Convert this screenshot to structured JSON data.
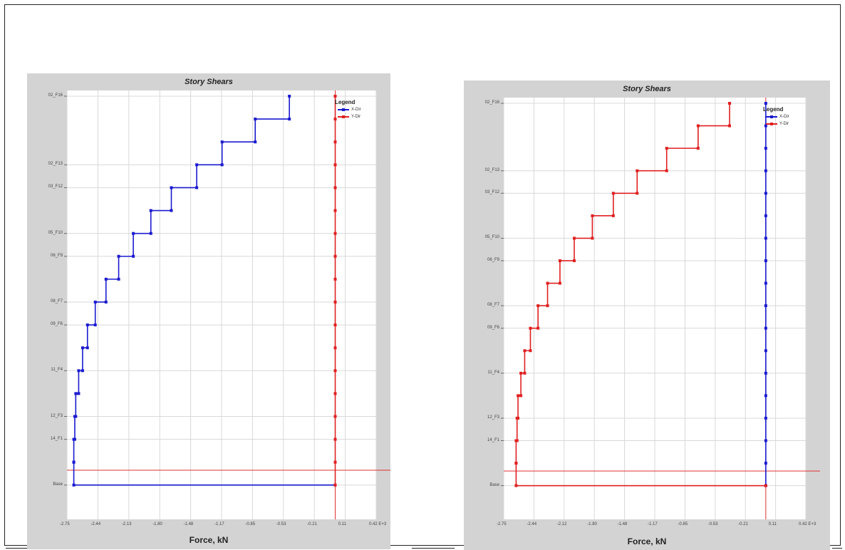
{
  "chart_data": [
    {
      "type": "line",
      "title": "Story Shears",
      "xlabel": "Force, kN",
      "xtick_labels": [
        "-2.75",
        "-2.44",
        "-2.13",
        "-1.80",
        "-1.48",
        "-1.17",
        "-0.85",
        "-0.53",
        "-0.21",
        "0.11",
        "0.42 E+3"
      ],
      "xlim": [
        -2.75,
        0.42
      ],
      "story_labels": [
        "02_F16",
        "02_F13",
        "03_F12",
        "05_F10",
        "06_F9",
        "08_F7",
        "09_F6",
        "11_F4",
        "12_F3",
        "14_F1",
        "Base"
      ],
      "story_positions": [
        16,
        13,
        12,
        10,
        9,
        7,
        6,
        4,
        2,
        1,
        -1
      ],
      "legend_title": "Legend",
      "series": [
        {
          "name": "X-Dir",
          "color": "#1a1ad0",
          "points": [
            [
              -0.47,
              16
            ],
            [
              -0.47,
              15
            ],
            [
              -0.82,
              15
            ],
            [
              -0.82,
              14
            ],
            [
              -1.16,
              14
            ],
            [
              -1.16,
              13
            ],
            [
              -1.42,
              13
            ],
            [
              -1.42,
              12
            ],
            [
              -1.68,
              12
            ],
            [
              -1.68,
              11
            ],
            [
              -1.89,
              11
            ],
            [
              -1.89,
              10
            ],
            [
              -2.07,
              10
            ],
            [
              -2.07,
              9
            ],
            [
              -2.22,
              9
            ],
            [
              -2.22,
              8
            ],
            [
              -2.35,
              8
            ],
            [
              -2.35,
              7
            ],
            [
              -2.46,
              7
            ],
            [
              -2.46,
              6
            ],
            [
              -2.54,
              6
            ],
            [
              -2.54,
              5
            ],
            [
              -2.59,
              5
            ],
            [
              -2.59,
              4
            ],
            [
              -2.63,
              4
            ],
            [
              -2.63,
              3
            ],
            [
              -2.66,
              3
            ],
            [
              -2.66,
              2
            ],
            [
              -2.67,
              2
            ],
            [
              -2.67,
              1
            ],
            [
              -2.68,
              1
            ],
            [
              -2.68,
              0
            ],
            [
              -2.68,
              0
            ],
            [
              -2.68,
              -1
            ],
            [
              0.0,
              -1
            ]
          ]
        },
        {
          "name": "Y-Dir",
          "color": "#e02020",
          "points": [
            [
              0.0,
              16
            ],
            [
              0.0,
              15
            ],
            [
              0.0,
              14
            ],
            [
              0.0,
              13
            ],
            [
              0.0,
              12
            ],
            [
              0.0,
              11
            ],
            [
              0.0,
              10
            ],
            [
              0.0,
              9
            ],
            [
              0.0,
              8
            ],
            [
              0.0,
              7
            ],
            [
              0.0,
              6
            ],
            [
              0.0,
              5
            ],
            [
              0.0,
              4
            ],
            [
              0.0,
              3
            ],
            [
              0.0,
              2
            ],
            [
              0.0,
              1
            ],
            [
              0.0,
              0
            ],
            [
              0.0,
              -1
            ]
          ]
        }
      ],
      "crosshair": {
        "x": 0.0,
        "y": -0.35
      }
    },
    {
      "type": "line",
      "title": "Story Shears",
      "xlabel": "Force, kN",
      "xtick_labels": [
        "-2.75",
        "-2.44",
        "-2.12",
        "-1.80",
        "-1.48",
        "-1.17",
        "-0.85",
        "-0.53",
        "-0.21",
        "0.11",
        "0.42 E+3"
      ],
      "xlim": [
        -2.75,
        0.42
      ],
      "story_labels": [
        "02_F16",
        "02_F13",
        "03_F12",
        "05_F10",
        "06_F9",
        "08_F7",
        "09_F6",
        "11_F4",
        "12_F3",
        "14_F1",
        "Base"
      ],
      "story_positions": [
        16,
        13,
        12,
        10,
        9,
        7,
        6,
        4,
        2,
        1,
        -1
      ],
      "legend_title": "Legend",
      "series": [
        {
          "name": "X-Dir",
          "color": "#1a1ad0",
          "points": [
            [
              0.0,
              16
            ],
            [
              0.0,
              15
            ],
            [
              0.0,
              14
            ],
            [
              0.0,
              13
            ],
            [
              0.0,
              12
            ],
            [
              0.0,
              11
            ],
            [
              0.0,
              10
            ],
            [
              0.0,
              9
            ],
            [
              0.0,
              8
            ],
            [
              0.0,
              7
            ],
            [
              0.0,
              6
            ],
            [
              0.0,
              5
            ],
            [
              0.0,
              4
            ],
            [
              0.0,
              3
            ],
            [
              0.0,
              2
            ],
            [
              0.0,
              1
            ],
            [
              0.0,
              0
            ],
            [
              0.0,
              -1
            ]
          ]
        },
        {
          "name": "Y-Dir",
          "color": "#e02020",
          "points": [
            [
              -0.38,
              16
            ],
            [
              -0.38,
              15
            ],
            [
              -0.71,
              15
            ],
            [
              -0.71,
              14
            ],
            [
              -1.04,
              14
            ],
            [
              -1.04,
              13
            ],
            [
              -1.35,
              13
            ],
            [
              -1.35,
              12
            ],
            [
              -1.6,
              12
            ],
            [
              -1.6,
              11
            ],
            [
              -1.82,
              11
            ],
            [
              -1.82,
              10
            ],
            [
              -2.01,
              10
            ],
            [
              -2.01,
              9
            ],
            [
              -2.16,
              9
            ],
            [
              -2.16,
              8
            ],
            [
              -2.29,
              8
            ],
            [
              -2.29,
              7
            ],
            [
              -2.39,
              7
            ],
            [
              -2.39,
              6
            ],
            [
              -2.47,
              6
            ],
            [
              -2.47,
              5
            ],
            [
              -2.53,
              5
            ],
            [
              -2.53,
              4
            ],
            [
              -2.57,
              4
            ],
            [
              -2.57,
              3
            ],
            [
              -2.6,
              3
            ],
            [
              -2.6,
              2
            ],
            [
              -2.61,
              2
            ],
            [
              -2.61,
              1
            ],
            [
              -2.62,
              1
            ],
            [
              -2.62,
              0
            ],
            [
              -2.62,
              0
            ],
            [
              -2.62,
              -1
            ],
            [
              0.0,
              -1
            ]
          ]
        }
      ],
      "crosshair": {
        "x": 0.0,
        "y": -0.35
      }
    }
  ]
}
